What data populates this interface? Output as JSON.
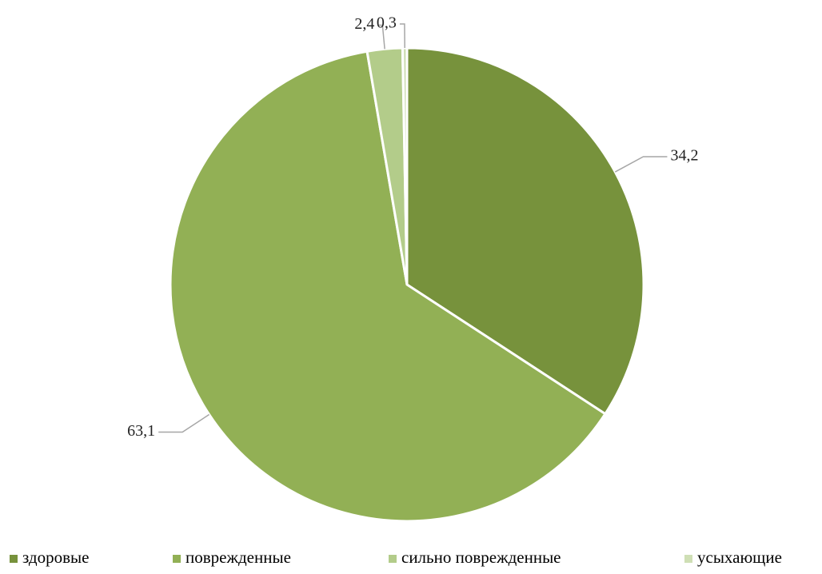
{
  "chart_data": {
    "type": "pie",
    "categories": [
      "здоровые",
      "поврежденные",
      "сильно поврежденные",
      "усыхающие"
    ],
    "values": [
      34.2,
      63.1,
      2.4,
      0.3
    ],
    "value_labels": [
      "34,2",
      "63,1",
      "2,4",
      "0,3"
    ],
    "colors": [
      "#77923c",
      "#92b055",
      "#b3cc8a",
      "#cfdfb5"
    ],
    "legend": "bottom"
  }
}
